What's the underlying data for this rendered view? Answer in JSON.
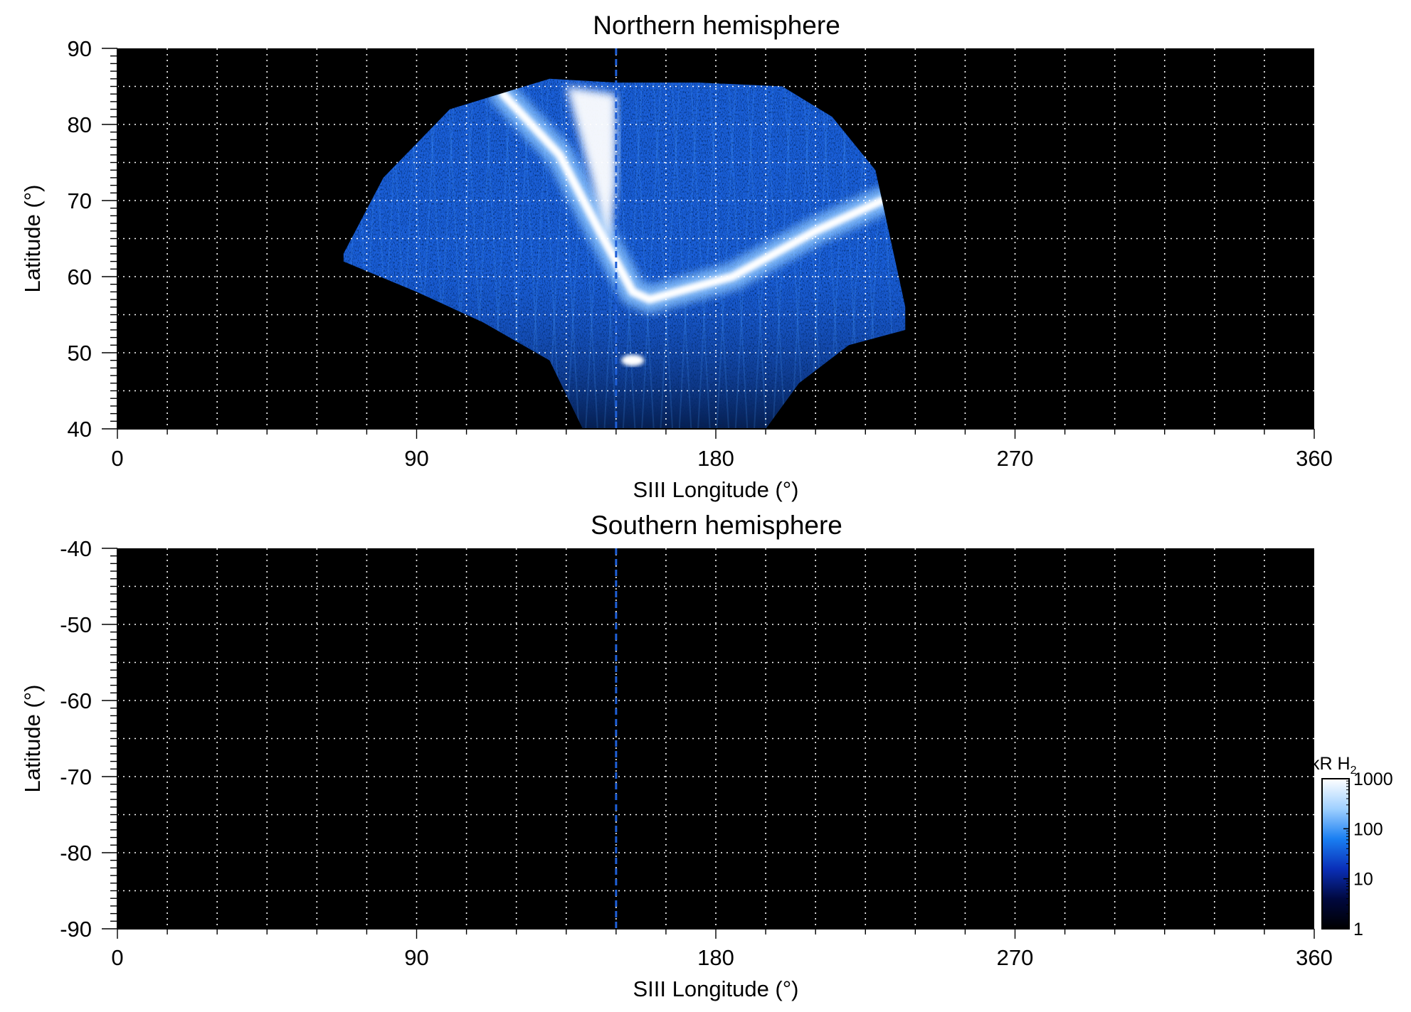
{
  "figure": {
    "colorbar": {
      "label_main": "kR H",
      "label_sub": "2",
      "scale": "log",
      "range": [
        1,
        1000
      ],
      "ticks": [
        "1",
        "10",
        "100",
        "1000"
      ],
      "colors": [
        "#000000",
        "#00083f",
        "#0a2fb8",
        "#1a7ff2",
        "#9fd0ff",
        "#ffffff"
      ]
    },
    "reference_line": {
      "longitude": 150,
      "color": "#1f5fd6",
      "style": "dashed"
    },
    "grid": {
      "on": true,
      "color": "#ffffff",
      "style": "dotted"
    }
  },
  "chart_data": [
    {
      "type": "heatmap",
      "title": "Northern hemisphere",
      "xlabel": "SIII Longitude (°)",
      "ylabel": "Latitude (°)",
      "xlim": [
        0,
        360
      ],
      "ylim": [
        40,
        90
      ],
      "xticks": [
        "0",
        "90",
        "180",
        "270",
        "360"
      ],
      "yticks": [
        "40",
        "50",
        "60",
        "70",
        "80",
        "90"
      ],
      "coverage_region": {
        "longitude_range": [
          68,
          237
        ],
        "upper_boundary": [
          [
            68,
            63
          ],
          [
            80,
            73
          ],
          [
            100,
            82
          ],
          [
            130,
            86
          ],
          [
            150,
            85.5
          ],
          [
            175,
            85.5
          ],
          [
            200,
            85
          ],
          [
            215,
            81
          ],
          [
            228,
            74
          ],
          [
            237,
            56
          ]
        ],
        "lower_boundary": [
          [
            68,
            62
          ],
          [
            90,
            58
          ],
          [
            110,
            54
          ],
          [
            130,
            49
          ],
          [
            140,
            40
          ],
          [
            195,
            40
          ],
          [
            205,
            46
          ],
          [
            220,
            51
          ],
          [
            237,
            53
          ]
        ]
      },
      "bright_features": [
        {
          "name": "main oval arc",
          "points": [
            [
              116,
              84
            ],
            [
              133,
              76
            ],
            [
              145,
              66
            ],
            [
              155,
              58
            ],
            [
              160,
              57
            ],
            [
              185,
              60
            ],
            [
              210,
              66
            ],
            [
              230,
              70
            ]
          ]
        },
        {
          "name": "polar bright region",
          "points": [
            [
              135,
              85
            ],
            [
              150,
              84
            ],
            [
              150,
              72
            ],
            [
              148,
              64
            ]
          ]
        },
        {
          "name": "low-latitude spot",
          "points": [
            [
              155,
              49
            ]
          ]
        }
      ]
    },
    {
      "type": "heatmap",
      "title": "Southern hemisphere",
      "xlabel": "SIII Longitude (°)",
      "ylabel": "Latitude (°)",
      "xlim": [
        0,
        360
      ],
      "ylim": [
        -90,
        -40
      ],
      "xticks": [
        "0",
        "90",
        "180",
        "270",
        "360"
      ],
      "yticks": [
        "-40",
        "-50",
        "-60",
        "-70",
        "-80",
        "-90"
      ],
      "coverage_region": null,
      "bright_features": []
    }
  ]
}
